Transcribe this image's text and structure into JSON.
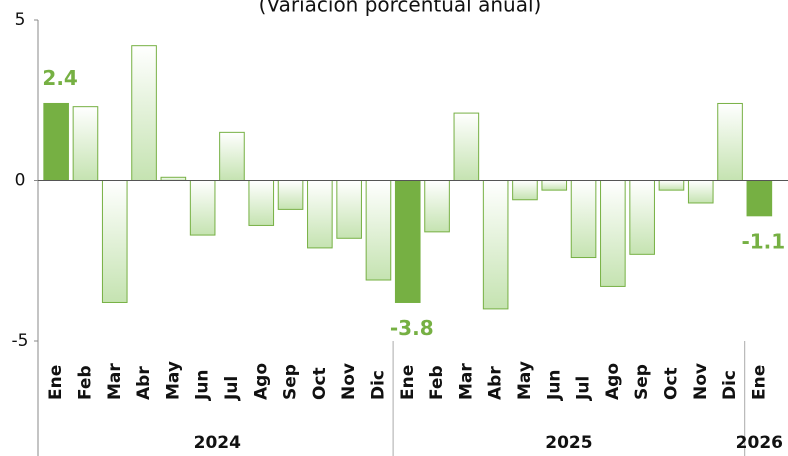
{
  "chart_data": {
    "type": "bar",
    "title": "(Variación porcentual anual)",
    "categories": [
      "Ene",
      "Feb",
      "Mar",
      "Abr",
      "May",
      "Jun",
      "Jul",
      "Ago",
      "Sep",
      "Oct",
      "Nov",
      "Dic",
      "Ene",
      "Feb",
      "Mar",
      "Abr",
      "May",
      "Jun",
      "Jul",
      "Ago",
      "Sep",
      "Oct",
      "Nov",
      "Dic",
      "Ene"
    ],
    "values": [
      2.4,
      2.3,
      -3.8,
      4.2,
      0.1,
      -1.7,
      1.5,
      -1.4,
      -0.9,
      -2.1,
      -1.8,
      -3.1,
      -3.8,
      -1.6,
      2.1,
      -4.0,
      -0.6,
      -0.3,
      -2.4,
      -3.3,
      -2.3,
      -0.3,
      -0.7,
      2.4,
      -1.1
    ],
    "years": [
      "2024",
      "2025",
      "2026"
    ],
    "year_spans": [
      12,
      12,
      1
    ],
    "highlight": [
      0,
      12,
      24
    ],
    "color": "#76b043",
    "ylim": [
      -5,
      5
    ],
    "yticks": [
      5,
      0,
      -5
    ]
  }
}
